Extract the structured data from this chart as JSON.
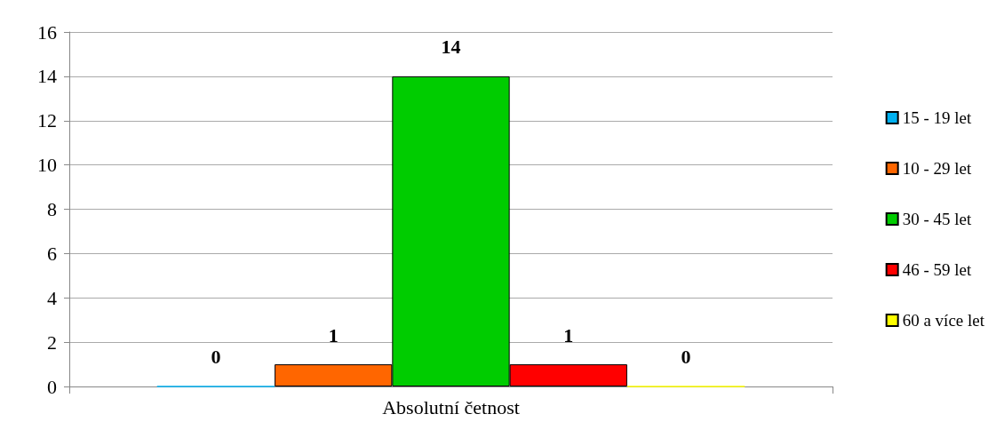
{
  "chart_data": {
    "type": "bar",
    "categories": [
      "Absolutní četnost"
    ],
    "series": [
      {
        "name": "15 - 19 let",
        "color": "#00b0f0",
        "values": [
          0
        ]
      },
      {
        "name": "10 - 29 let",
        "color": "#ff6600",
        "values": [
          1
        ]
      },
      {
        "name": "30 - 45 let",
        "color": "#00cc00",
        "values": [
          14
        ]
      },
      {
        "name": "46 - 59 let",
        "color": "#ff0000",
        "values": [
          1
        ]
      },
      {
        "name": "60 a více let",
        "color": "#ffff00",
        "values": [
          0
        ]
      }
    ],
    "ylim": [
      0,
      16
    ],
    "yticks": [
      0,
      2,
      4,
      6,
      8,
      10,
      12,
      14,
      16
    ],
    "grid": "y",
    "legend": "right",
    "data_labels": true
  }
}
